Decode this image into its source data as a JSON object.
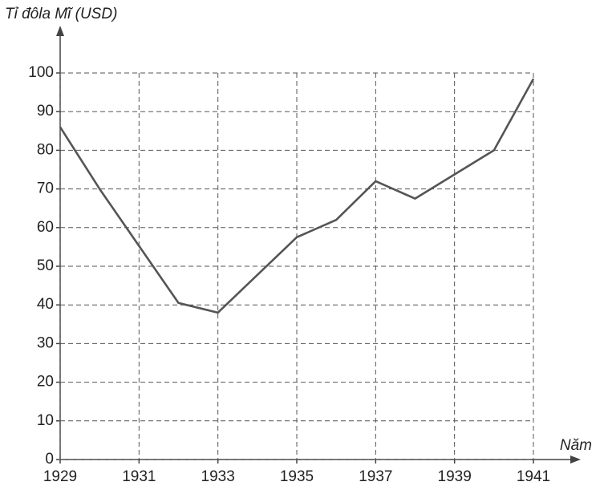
{
  "chart_data": {
    "type": "line",
    "y_label": "Tỉ đôla Mĩ (USD)",
    "x_label": "Năm",
    "x": [
      1929,
      1930,
      1932,
      1933,
      1935,
      1936,
      1937,
      1938,
      1940,
      1941
    ],
    "values": [
      86,
      70,
      40.5,
      38,
      57.5,
      62,
      72,
      67.5,
      80,
      98.5
    ],
    "color": "#555555",
    "xlim": [
      1929,
      1941
    ],
    "xticks": [
      1929,
      1931,
      1933,
      1935,
      1937,
      1939,
      1941
    ],
    "ylim": [
      0,
      100
    ],
    "yticks": [
      0,
      10,
      20,
      30,
      40,
      50,
      60,
      70,
      80,
      90,
      100
    ],
    "grid": true
  }
}
